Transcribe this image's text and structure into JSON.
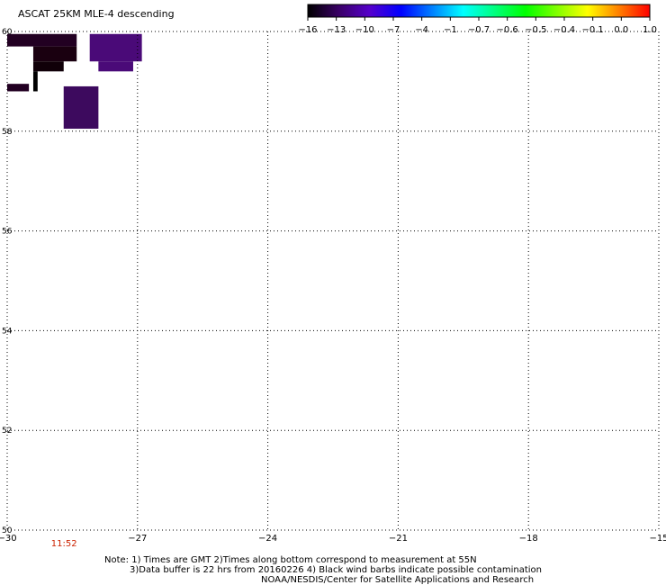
{
  "title": "ASCAT 25KM MLE-4 descending",
  "colorbar": {
    "labels": [
      "-16",
      "-13",
      "-10",
      "-7",
      "-4",
      "-1",
      "-0.7",
      "-0.6",
      "-0.5",
      "-0.4",
      "-0.1",
      "0.0",
      "1.0"
    ],
    "colors": [
      "#000000",
      "#3a0066",
      "#5500cc",
      "#0000ff",
      "#0080ff",
      "#00ffff",
      "#00ff80",
      "#00ff00",
      "#80ff00",
      "#ffff00",
      "#ff8000",
      "#ff0000"
    ]
  },
  "map": {
    "lon_range": [
      -30,
      -15
    ],
    "lat_range": [
      50,
      60
    ],
    "lon_ticks": [
      {
        "value": -30,
        "label": "-30"
      },
      {
        "value": -27,
        "label": "-27"
      },
      {
        "value": -24,
        "label": "-24"
      },
      {
        "value": -21,
        "label": "-21"
      },
      {
        "value": -18,
        "label": "-18"
      },
      {
        "value": -15,
        "label": "-15"
      }
    ],
    "lat_ticks": [
      {
        "value": 60,
        "label": "60"
      },
      {
        "value": 58,
        "label": "58"
      },
      {
        "value": 56,
        "label": "56"
      },
      {
        "value": 54,
        "label": "54"
      },
      {
        "value": 52,
        "label": "52"
      },
      {
        "value": 50,
        "label": "50"
      }
    ],
    "data_cells": [
      {
        "lon0": -30.0,
        "lon1": -28.4,
        "lat0": 59.7,
        "lat1": 59.95,
        "color": "#220022"
      },
      {
        "lon0": -29.4,
        "lon1": -28.4,
        "lat0": 59.4,
        "lat1": 59.7,
        "color": "#1a0010"
      },
      {
        "lon0": -29.4,
        "lon1": -28.7,
        "lat0": 59.2,
        "lat1": 59.4,
        "color": "#100008"
      },
      {
        "lon0": -29.4,
        "lon1": -29.3,
        "lat0": 58.8,
        "lat1": 59.2,
        "color": "#000000"
      },
      {
        "lon0": -30.0,
        "lon1": -29.5,
        "lat0": 58.8,
        "lat1": 58.95,
        "color": "#220022"
      },
      {
        "lon0": -28.1,
        "lon1": -26.9,
        "lat0": 59.4,
        "lat1": 59.95,
        "color": "#4a0a78"
      },
      {
        "lon0": -27.9,
        "lon1": -27.1,
        "lat0": 59.2,
        "lat1": 59.4,
        "color": "#4a0a78"
      },
      {
        "lon0": -28.7,
        "lon1": -27.9,
        "lat0": 58.05,
        "lat1": 58.9,
        "color": "#3d0a5e"
      }
    ],
    "time_label": {
      "text": "11:52",
      "lon": -28.7
    }
  },
  "notes": {
    "line1": "Note: 1) Times are GMT 2)Times along bottom correspond to measurement at 55N",
    "line2": "3)Data buffer is 22 hrs from 20160226 4) Black wind barbs indicate possible contamination",
    "line3": "NOAA/NESDIS/Center for Satellite Applications and Research"
  }
}
